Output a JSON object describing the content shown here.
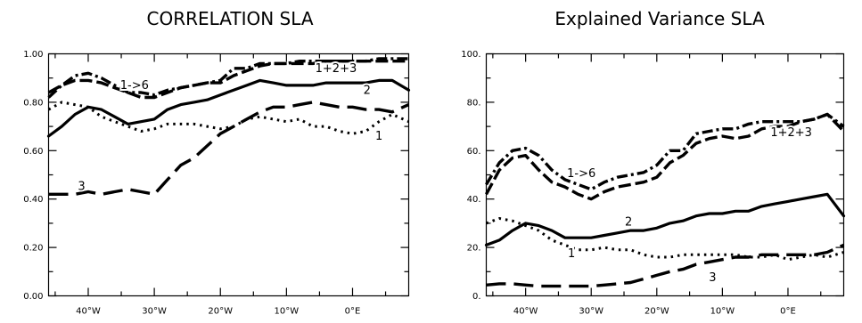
{
  "chart_data": [
    {
      "type": "line",
      "title": "CORRELATION SLA",
      "xlim": [
        -46,
        8.5
      ],
      "ylim": [
        0,
        1
      ],
      "yticks": [
        0.0,
        0.2,
        0.4,
        0.6,
        0.8,
        1.0
      ],
      "ytick_labels": [
        "0.00",
        "0.20",
        "0.40",
        "0.60",
        "0.80",
        "1.00"
      ],
      "xticks": [
        -40,
        -30,
        -20,
        -10,
        0
      ],
      "xtick_labels": [
        "40°W",
        "30°W",
        "20°W",
        "10°W",
        "0°E"
      ],
      "series": [
        {
          "name": "1->6",
          "style": "dashdot",
          "x": [
            -46,
            -44,
            -42,
            -40,
            -38,
            -36,
            -34,
            -32,
            -30,
            -28,
            -26,
            -24,
            -22,
            -20,
            -18,
            -16,
            -14,
            -12,
            -10,
            -8,
            -6,
            -4,
            -2,
            0,
            2,
            4,
            6,
            8.5
          ],
          "y": [
            0.82,
            0.87,
            0.91,
            0.92,
            0.9,
            0.87,
            0.84,
            0.84,
            0.83,
            0.85,
            0.86,
            0.87,
            0.88,
            0.89,
            0.94,
            0.94,
            0.96,
            0.96,
            0.96,
            0.97,
            0.97,
            0.97,
            0.97,
            0.97,
            0.97,
            0.98,
            0.98,
            0.98
          ]
        },
        {
          "name": "1+2+3",
          "style": "longdash",
          "x": [
            -46,
            -44,
            -42,
            -40,
            -38,
            -36,
            -34,
            -32,
            -30,
            -28,
            -26,
            -24,
            -22,
            -20,
            -18,
            -16,
            -14,
            -12,
            -10,
            -8,
            -6,
            -4,
            -2,
            0,
            2,
            4,
            6,
            8.5
          ],
          "y": [
            0.84,
            0.87,
            0.89,
            0.89,
            0.88,
            0.86,
            0.84,
            0.82,
            0.82,
            0.84,
            0.86,
            0.87,
            0.88,
            0.88,
            0.91,
            0.93,
            0.95,
            0.96,
            0.96,
            0.96,
            0.96,
            0.97,
            0.97,
            0.97,
            0.97,
            0.97,
            0.97,
            0.97
          ]
        },
        {
          "name": "2",
          "style": "solid",
          "x": [
            -46,
            -44,
            -42,
            -40,
            -38,
            -36,
            -34,
            -32,
            -30,
            -28,
            -26,
            -24,
            -22,
            -20,
            -18,
            -16,
            -14,
            -12,
            -10,
            -8,
            -6,
            -4,
            -2,
            0,
            2,
            4,
            6,
            8.5
          ],
          "y": [
            0.66,
            0.7,
            0.75,
            0.78,
            0.77,
            0.74,
            0.71,
            0.72,
            0.73,
            0.77,
            0.79,
            0.8,
            0.81,
            0.83,
            0.85,
            0.87,
            0.89,
            0.88,
            0.87,
            0.87,
            0.87,
            0.88,
            0.88,
            0.88,
            0.88,
            0.89,
            0.89,
            0.85
          ]
        },
        {
          "name": "1",
          "style": "dotted",
          "x": [
            -46,
            -44,
            -42,
            -40,
            -38,
            -36,
            -34,
            -32,
            -30,
            -28,
            -26,
            -24,
            -22,
            -20,
            -18,
            -16,
            -14,
            -12,
            -10,
            -8,
            -6,
            -4,
            -2,
            0,
            2,
            4,
            6,
            8.5
          ],
          "y": [
            0.77,
            0.8,
            0.79,
            0.78,
            0.74,
            0.72,
            0.7,
            0.68,
            0.69,
            0.71,
            0.71,
            0.71,
            0.7,
            0.69,
            0.7,
            0.73,
            0.74,
            0.73,
            0.72,
            0.73,
            0.7,
            0.7,
            0.68,
            0.67,
            0.68,
            0.72,
            0.75,
            0.72
          ]
        },
        {
          "name": "3",
          "style": "dashed",
          "x": [
            -46,
            -44,
            -42,
            -40,
            -38,
            -36,
            -34,
            -32,
            -30,
            -28,
            -26,
            -24,
            -22,
            -20,
            -18,
            -16,
            -14,
            -12,
            -10,
            -8,
            -6,
            -4,
            -2,
            0,
            2,
            4,
            6,
            8.5
          ],
          "y": [
            0.42,
            0.42,
            0.42,
            0.43,
            0.42,
            0.43,
            0.44,
            0.43,
            0.42,
            0.48,
            0.54,
            0.57,
            0.62,
            0.67,
            0.7,
            0.73,
            0.76,
            0.78,
            0.78,
            0.79,
            0.8,
            0.79,
            0.78,
            0.78,
            0.77,
            0.77,
            0.76,
            0.79
          ]
        }
      ],
      "labels": [
        {
          "text": "1->6",
          "x": -33.0,
          "y": 0.855
        },
        {
          "text": "1+2+3",
          "x": -2.5,
          "y": 0.925
        },
        {
          "text": "2",
          "x": 2.2,
          "y": 0.835
        },
        {
          "text": "1",
          "x": 4.0,
          "y": 0.645
        },
        {
          "text": "3",
          "x": -41.0,
          "y": 0.437
        }
      ]
    },
    {
      "type": "line",
      "title": "Explained Variance SLA",
      "xlim": [
        -46,
        8.5
      ],
      "ylim": [
        0,
        100
      ],
      "yticks": [
        0,
        20,
        40,
        60,
        80,
        100
      ],
      "ytick_labels": [
        "0.",
        "20.",
        "40.",
        "60.",
        "80.",
        "100."
      ],
      "xticks": [
        -40,
        -30,
        -20,
        -10,
        0
      ],
      "xtick_labels": [
        "40°W",
        "30°W",
        "20°W",
        "10°W",
        "0°E"
      ],
      "series": [
        {
          "name": "1->6",
          "style": "dashdot",
          "x": [
            -46,
            -44,
            -42,
            -40,
            -38,
            -36,
            -34,
            -32,
            -30,
            -28,
            -26,
            -24,
            -22,
            -20,
            -18,
            -16,
            -14,
            -12,
            -10,
            -8,
            -6,
            -4,
            -2,
            0,
            2,
            4,
            6,
            8.5
          ],
          "y": [
            46,
            55,
            60,
            61,
            58,
            52,
            48,
            46,
            44,
            47,
            49,
            50,
            51,
            54,
            60,
            60,
            67,
            68,
            69,
            69,
            71,
            72,
            72,
            72,
            72,
            73,
            75,
            70
          ]
        },
        {
          "name": "1+2+3",
          "style": "longdash",
          "x": [
            -46,
            -44,
            -42,
            -40,
            -38,
            -36,
            -34,
            -32,
            -30,
            -28,
            -26,
            -24,
            -22,
            -20,
            -18,
            -16,
            -14,
            -12,
            -10,
            -8,
            -6,
            -4,
            -2,
            0,
            2,
            4,
            6,
            8.5
          ],
          "y": [
            42,
            52,
            57,
            58,
            52,
            47,
            45,
            42,
            40,
            43,
            45,
            46,
            47,
            49,
            55,
            58,
            63,
            65,
            66,
            65,
            66,
            69,
            70,
            70,
            72,
            73,
            75,
            68
          ]
        },
        {
          "name": "2",
          "style": "solid",
          "x": [
            -46,
            -44,
            -42,
            -40,
            -38,
            -36,
            -34,
            -32,
            -30,
            -28,
            -26,
            -24,
            -22,
            -20,
            -18,
            -16,
            -14,
            -12,
            -10,
            -8,
            -6,
            -4,
            -2,
            0,
            2,
            4,
            6,
            8.5
          ],
          "y": [
            21,
            23,
            27,
            30,
            29,
            27,
            24,
            24,
            24,
            25,
            26,
            27,
            27,
            28,
            30,
            31,
            33,
            34,
            34,
            35,
            35,
            37,
            38,
            39,
            40,
            41,
            42,
            33
          ]
        },
        {
          "name": "1",
          "style": "dotted",
          "x": [
            -46,
            -44,
            -42,
            -40,
            -38,
            -36,
            -34,
            -32,
            -30,
            -28,
            -26,
            -24,
            -22,
            -20,
            -18,
            -16,
            -14,
            -12,
            -10,
            -8,
            -6,
            -4,
            -2,
            0,
            2,
            4,
            6,
            8.5
          ],
          "y": [
            30,
            32,
            31,
            29,
            27,
            23,
            21,
            19,
            19,
            20,
            19,
            19,
            17,
            16,
            16,
            17,
            17,
            17,
            17,
            17,
            16,
            16,
            17,
            15,
            16,
            17,
            16,
            18
          ]
        },
        {
          "name": "3",
          "style": "dashed",
          "x": [
            -46,
            -44,
            -42,
            -40,
            -38,
            -36,
            -34,
            -32,
            -30,
            -28,
            -26,
            -24,
            -22,
            -20,
            -18,
            -16,
            -14,
            -12,
            -10,
            -8,
            -6,
            -4,
            -2,
            0,
            2,
            4,
            6,
            8.5
          ],
          "y": [
            4.5,
            5,
            5,
            4.5,
            4,
            4,
            4,
            4,
            4,
            4.5,
            5,
            5.5,
            7,
            8.5,
            10,
            11,
            13,
            14,
            15,
            16,
            16,
            17,
            17,
            17,
            17,
            17,
            18,
            21
          ]
        }
      ],
      "labels": [
        {
          "text": "1->6",
          "x": -31.5,
          "y": 49
        },
        {
          "text": "1+2+3",
          "x": 0.5,
          "y": 66
        },
        {
          "text": "2",
          "x": -24.3,
          "y": 29
        },
        {
          "text": "1",
          "x": -33.0,
          "y": 16
        },
        {
          "text": "3",
          "x": -11.5,
          "y": 6
        }
      ]
    }
  ]
}
